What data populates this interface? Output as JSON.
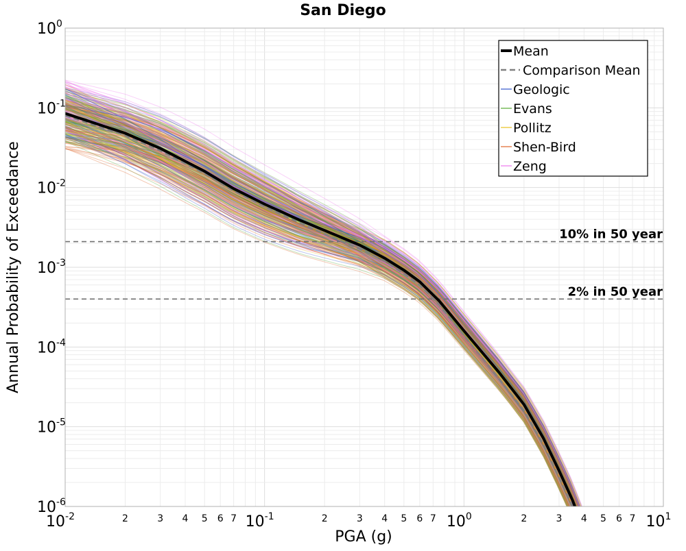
{
  "chart_data": {
    "type": "line",
    "title": "San Diego",
    "xlabel": "PGA (g)",
    "ylabel": "Annual Probability of Exceedance",
    "x_scale": "log",
    "y_scale": "log",
    "xlim": [
      0.01,
      10
    ],
    "ylim": [
      1e-06,
      1
    ],
    "grid": true,
    "legend_position": "top-right",
    "x_major_ticks": [
      {
        "base": "10",
        "exp": "-2",
        "value": 0.01
      },
      {
        "base": "10",
        "exp": "-1",
        "value": 0.1
      },
      {
        "base": "10",
        "exp": "0",
        "value": 1
      },
      {
        "base": "10",
        "exp": "1",
        "value": 10
      }
    ],
    "y_major_ticks": [
      {
        "base": "10",
        "exp": "0",
        "value": 1
      },
      {
        "base": "10",
        "exp": "-1",
        "value": 0.1
      },
      {
        "base": "10",
        "exp": "-2",
        "value": 0.01
      },
      {
        "base": "10",
        "exp": "-3",
        "value": 0.001
      },
      {
        "base": "10",
        "exp": "-4",
        "value": 0.0001
      },
      {
        "base": "10",
        "exp": "-5",
        "value": 1e-05
      },
      {
        "base": "10",
        "exp": "-6",
        "value": 1e-06
      }
    ],
    "x_minor_tick_labels": [
      "2",
      "3",
      "4",
      "5",
      "6",
      "7"
    ],
    "reference_lines": [
      {
        "label": "10% in 50 year",
        "y": 0.0021
      },
      {
        "label": "2% in 50 year",
        "y": 0.0004
      }
    ],
    "series": [
      {
        "name": "Mean",
        "color": "#000000",
        "style": "solid",
        "x": [
          0.01,
          0.02,
          0.03,
          0.05,
          0.07,
          0.1,
          0.15,
          0.2,
          0.3,
          0.4,
          0.5,
          0.6,
          0.75,
          1.0,
          1.5,
          2.0,
          2.5,
          3.0,
          3.5,
          4.0
        ],
        "y": [
          0.085,
          0.048,
          0.031,
          0.016,
          0.0097,
          0.0062,
          0.0039,
          0.0029,
          0.0019,
          0.0013,
          0.00092,
          0.00066,
          0.00038,
          0.00016,
          4.8e-05,
          1.9e-05,
          7.2e-06,
          2.8e-06,
          1.2e-06,
          5e-07
        ]
      },
      {
        "name": "Comparison Mean",
        "color": "#808080",
        "style": "dashed",
        "x": [
          0.01,
          0.02,
          0.03,
          0.05,
          0.07,
          0.1,
          0.15,
          0.2,
          0.3,
          0.4,
          0.5,
          0.6,
          0.75,
          1.0,
          1.5,
          2.0,
          2.5,
          3.0,
          3.5,
          4.0
        ],
        "y": [
          0.08,
          0.045,
          0.029,
          0.015,
          0.0091,
          0.0058,
          0.0036,
          0.0026,
          0.0017,
          0.0012,
          0.00083,
          0.0006,
          0.00034,
          0.00014,
          4e-05,
          1.6e-05,
          6e-06,
          2.3e-06,
          1e-06,
          4e-07
        ]
      },
      {
        "name": "Geologic",
        "color": "#3355cc",
        "style": "solid"
      },
      {
        "name": "Evans",
        "color": "#55aa33",
        "style": "solid"
      },
      {
        "name": "Pollitz",
        "color": "#e8c020",
        "style": "solid"
      },
      {
        "name": "Shen-Bird",
        "color": "#e0662a",
        "style": "solid"
      },
      {
        "name": "Zeng",
        "color": "#ee77ee",
        "style": "solid"
      }
    ]
  }
}
